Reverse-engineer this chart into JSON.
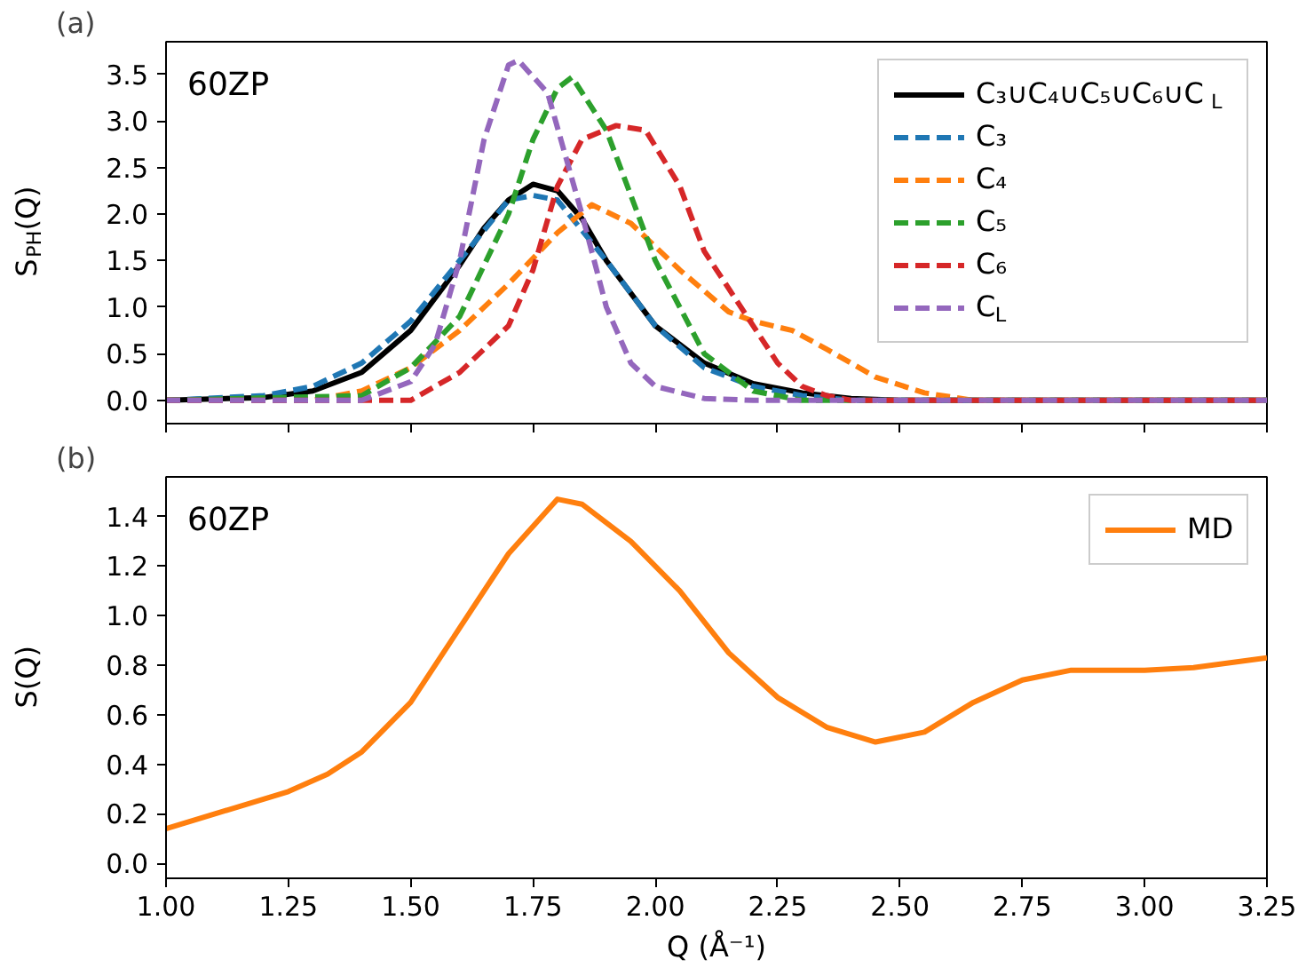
{
  "chart_data": [
    {
      "type": "line",
      "ylabel": "S$_{PH}$(Q)",
      "annotations": [
        "(a)",
        "60ZP"
      ],
      "legend": "top right",
      "tick_labels": "y",
      "xlim": [
        1.0,
        3.25
      ],
      "ylim": [
        -0.25,
        3.85
      ],
      "xticks": [
        {
          "value": 1.0,
          "label": null
        },
        {
          "value": 1.25,
          "label": null
        },
        {
          "value": 1.5,
          "label": null
        },
        {
          "value": 1.75,
          "label": null
        },
        {
          "value": 2.0,
          "label": null
        },
        {
          "value": 2.25,
          "label": null
        },
        {
          "value": 2.5,
          "label": null
        },
        {
          "value": 2.75,
          "label": null
        },
        {
          "value": 3.0,
          "label": null
        },
        {
          "value": 3.25,
          "label": null
        }
      ],
      "yticks": [
        {
          "value": 0,
          "label": "0.0"
        },
        {
          "value": 0.5,
          "label": "0.5"
        },
        {
          "value": 1.0,
          "label": "1.0"
        },
        {
          "value": 1.5,
          "label": "1.5"
        },
        {
          "value": 2.0,
          "label": "2.0"
        },
        {
          "value": 2.5,
          "label": "2.5"
        },
        {
          "value": 3.0,
          "label": "3.0"
        },
        {
          "value": 3.5,
          "label": "3.5"
        }
      ],
      "series": [
        {
          "name": "C₃∪C₄∪C₅∪C₆∪C$_{L}$",
          "color": "#000000",
          "line_style": "solid",
          "x": [
            1.0,
            1.2,
            1.3,
            1.4,
            1.5,
            1.6,
            1.65,
            1.7,
            1.75,
            1.8,
            1.85,
            1.9,
            2.0,
            2.1,
            2.2,
            2.3,
            2.4,
            2.5,
            3.25
          ],
          "values": [
            0,
            0.03,
            0.1,
            0.3,
            0.75,
            1.45,
            1.85,
            2.15,
            2.32,
            2.25,
            1.95,
            1.5,
            0.8,
            0.4,
            0.18,
            0.08,
            0.02,
            0,
            0
          ]
        },
        {
          "name": "C₃",
          "color": "#1f77b4",
          "line_style": "dashed",
          "x": [
            1.0,
            1.2,
            1.3,
            1.4,
            1.5,
            1.6,
            1.7,
            1.75,
            1.8,
            1.9,
            2.0,
            2.1,
            2.2,
            2.3,
            2.4,
            3.25
          ],
          "values": [
            0,
            0.05,
            0.15,
            0.4,
            0.85,
            1.5,
            2.15,
            2.2,
            2.15,
            1.5,
            0.8,
            0.35,
            0.15,
            0.05,
            0,
            0
          ]
        },
        {
          "name": "C₄",
          "color": "#ff7f0e",
          "line_style": "dashed",
          "x": [
            1.0,
            1.3,
            1.4,
            1.5,
            1.6,
            1.7,
            1.8,
            1.87,
            1.95,
            2.05,
            2.15,
            2.2,
            2.28,
            2.35,
            2.45,
            2.55,
            2.65,
            3.25
          ],
          "values": [
            0,
            0,
            0.1,
            0.35,
            0.75,
            1.25,
            1.8,
            2.1,
            1.9,
            1.4,
            0.95,
            0.85,
            0.75,
            0.55,
            0.25,
            0.08,
            0,
            0
          ]
        },
        {
          "name": "C₅",
          "color": "#2ca02c",
          "line_style": "dashed",
          "x": [
            1.0,
            1.4,
            1.5,
            1.6,
            1.7,
            1.75,
            1.8,
            1.83,
            1.9,
            2.0,
            2.1,
            2.2,
            2.3,
            3.25
          ],
          "values": [
            0,
            0.05,
            0.35,
            0.9,
            2.0,
            2.8,
            3.35,
            3.47,
            2.9,
            1.5,
            0.5,
            0.1,
            0,
            0
          ]
        },
        {
          "name": "C₆",
          "color": "#d62728",
          "line_style": "dashed",
          "x": [
            1.0,
            1.5,
            1.6,
            1.7,
            1.75,
            1.8,
            1.85,
            1.92,
            1.98,
            2.05,
            2.1,
            2.15,
            2.2,
            2.25,
            2.3,
            2.35,
            2.4,
            3.25
          ],
          "values": [
            0,
            0,
            0.3,
            0.8,
            1.4,
            2.3,
            2.8,
            2.95,
            2.9,
            2.3,
            1.6,
            1.2,
            0.8,
            0.4,
            0.15,
            0.05,
            0,
            0
          ]
        },
        {
          "name": "C$_{L}$",
          "color": "#9467bd",
          "line_style": "dashed",
          "x": [
            1.0,
            1.4,
            1.5,
            1.55,
            1.6,
            1.65,
            1.7,
            1.72,
            1.78,
            1.85,
            1.9,
            1.95,
            2.0,
            2.1,
            2.2,
            3.25
          ],
          "values": [
            0,
            0,
            0.2,
            0.6,
            1.5,
            2.8,
            3.6,
            3.65,
            3.3,
            2.0,
            1.0,
            0.4,
            0.15,
            0.02,
            0,
            0
          ]
        }
      ]
    },
    {
      "type": "line",
      "xlabel": "Q (Å⁻¹)",
      "ylabel": "S(Q)",
      "annotations": [
        "(b)",
        "60ZP"
      ],
      "legend": "top right",
      "xlim": [
        1.0,
        3.25
      ],
      "ylim": [
        -0.06,
        1.56
      ],
      "xticks": [
        {
          "value": 1.0,
          "label": "1.00"
        },
        {
          "value": 1.25,
          "label": "1.25"
        },
        {
          "value": 1.5,
          "label": "1.50"
        },
        {
          "value": 1.75,
          "label": "1.75"
        },
        {
          "value": 2.0,
          "label": "2.00"
        },
        {
          "value": 2.25,
          "label": "2.25"
        },
        {
          "value": 2.5,
          "label": "2.50"
        },
        {
          "value": 2.75,
          "label": "2.75"
        },
        {
          "value": 3.0,
          "label": "3.00"
        },
        {
          "value": 3.25,
          "label": "3.25"
        }
      ],
      "yticks": [
        {
          "value": 0,
          "label": "0.0"
        },
        {
          "value": 0.2,
          "label": "0.2"
        },
        {
          "value": 0.4,
          "label": "0.4"
        },
        {
          "value": 0.6,
          "label": "0.6"
        },
        {
          "value": 0.8,
          "label": "0.8"
        },
        {
          "value": 1.0,
          "label": "1.0"
        },
        {
          "value": 1.2,
          "label": "1.2"
        },
        {
          "value": 1.4,
          "label": "1.4"
        }
      ],
      "series": [
        {
          "name": "MD",
          "color": "#ff7f0e",
          "line_style": "solid",
          "x": [
            1.0,
            1.1,
            1.25,
            1.33,
            1.4,
            1.5,
            1.6,
            1.7,
            1.8,
            1.85,
            1.95,
            2.05,
            2.15,
            2.25,
            2.35,
            2.45,
            2.55,
            2.65,
            2.75,
            2.85,
            3.0,
            3.1,
            3.25
          ],
          "values": [
            0.14,
            0.2,
            0.29,
            0.36,
            0.45,
            0.65,
            0.95,
            1.25,
            1.47,
            1.45,
            1.3,
            1.1,
            0.85,
            0.67,
            0.55,
            0.49,
            0.53,
            0.65,
            0.74,
            0.78,
            0.78,
            0.79,
            0.83
          ]
        }
      ]
    }
  ]
}
